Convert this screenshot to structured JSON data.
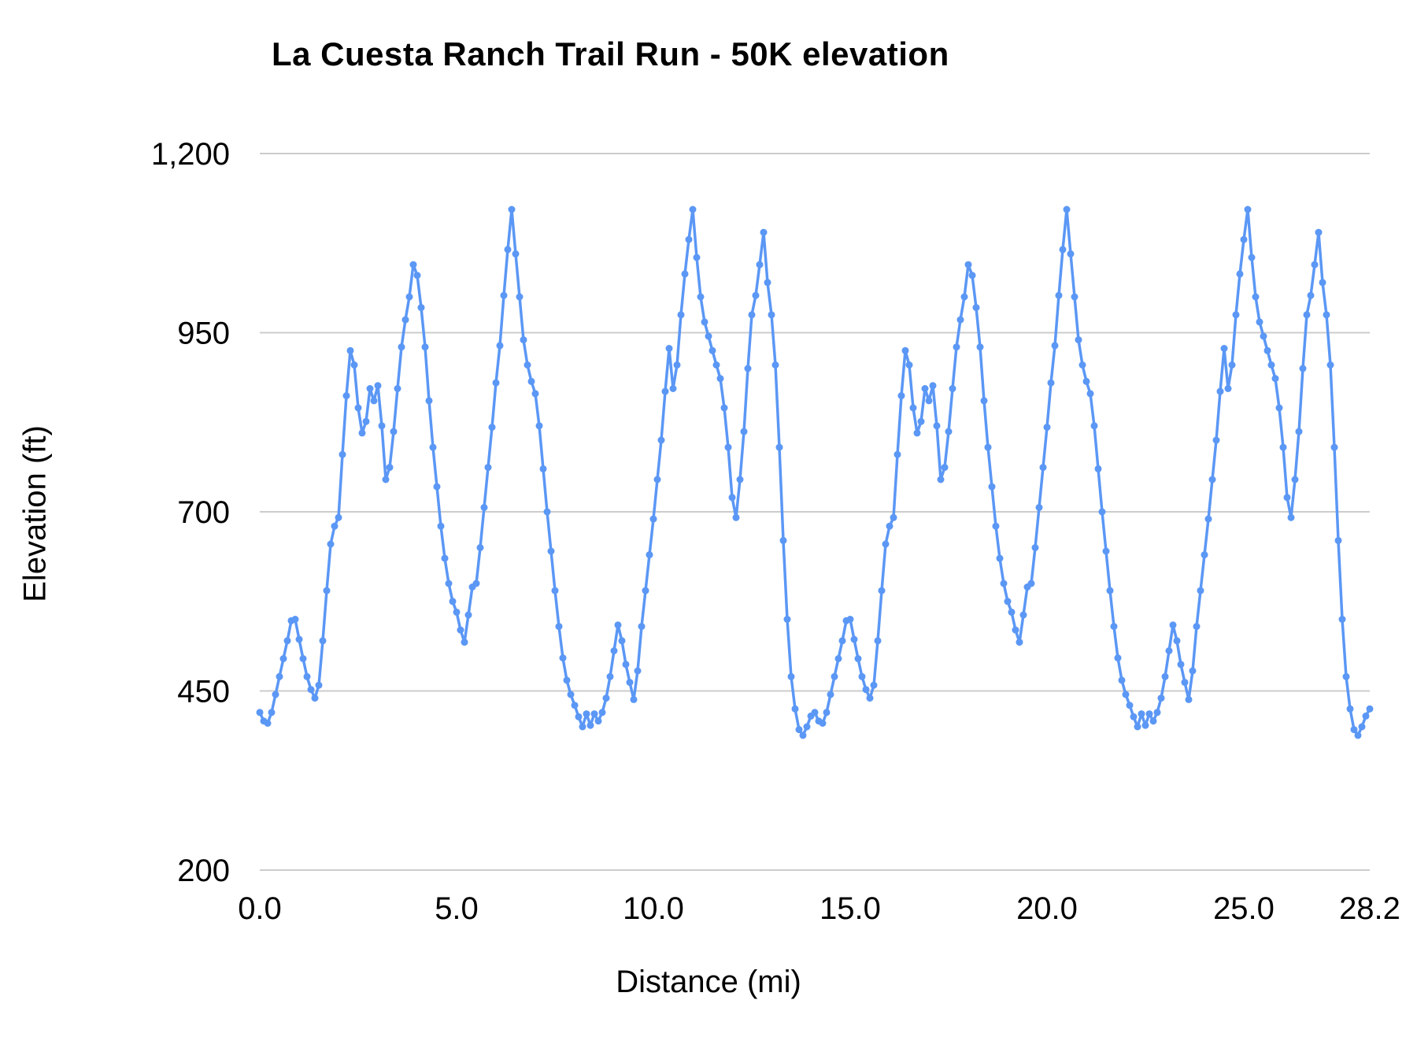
{
  "chart_data": {
    "type": "line",
    "title": "La Cuesta Ranch Trail Run - 50K elevation",
    "xlabel": "Distance (mi)",
    "ylabel": "Elevation (ft)",
    "series_name": "Elevation",
    "xlim": [
      0,
      28.2
    ],
    "ylim": [
      200,
      1200
    ],
    "x_ticks": [
      0,
      5,
      10,
      15,
      20,
      25,
      28.2
    ],
    "x_tick_labels": [
      "0.0",
      "5.0",
      "10.0",
      "15.0",
      "20.0",
      "25.0",
      "28.2"
    ],
    "y_ticks": [
      200,
      450,
      700,
      950,
      1200
    ],
    "y_tick_labels": [
      "200",
      "450",
      "700",
      "950",
      "1,200"
    ],
    "grid": "horizontal",
    "legend": "none",
    "line_color": "#5b97f5",
    "gridline_color": "#cccccc",
    "text_color": "#000000",
    "marker": "circle",
    "x_start": 0.0,
    "x_step": 0.1,
    "elevations": [
      420,
      408,
      405,
      420,
      445,
      470,
      495,
      520,
      548,
      550,
      522,
      495,
      470,
      452,
      440,
      458,
      520,
      590,
      655,
      680,
      692,
      780,
      862,
      925,
      905,
      845,
      810,
      826,
      872,
      855,
      876,
      820,
      745,
      762,
      812,
      872,
      930,
      968,
      1000,
      1045,
      1030,
      985,
      930,
      855,
      790,
      735,
      680,
      635,
      600,
      575,
      560,
      535,
      518,
      556,
      595,
      600,
      650,
      706,
      762,
      818,
      880,
      932,
      1002,
      1066,
      1122,
      1060,
      1000,
      940,
      905,
      882,
      865,
      820,
      760,
      700,
      645,
      590,
      540,
      496,
      465,
      445,
      430,
      414,
      400,
      418,
      402,
      418,
      408,
      420,
      440,
      470,
      506,
      542,
      520,
      487,
      462,
      438,
      478,
      540,
      590,
      640,
      690,
      745,
      800,
      868,
      928,
      872,
      905,
      975,
      1032,
      1080,
      1122,
      1055,
      1000,
      965,
      945,
      925,
      905,
      886,
      845,
      790,
      720,
      692,
      745,
      812,
      900,
      975,
      1002,
      1045,
      1090,
      1020,
      975,
      905,
      790,
      660,
      550,
      470,
      425,
      396,
      388,
      400,
      415,
      420,
      408,
      405,
      420,
      445,
      470,
      495,
      520,
      548,
      550,
      522,
      495,
      470,
      452,
      440,
      458,
      520,
      590,
      655,
      680,
      692,
      780,
      862,
      925,
      905,
      845,
      810,
      826,
      872,
      855,
      876,
      820,
      745,
      762,
      812,
      872,
      930,
      968,
      1000,
      1045,
      1030,
      985,
      930,
      855,
      790,
      735,
      680,
      635,
      600,
      575,
      560,
      535,
      518,
      556,
      595,
      600,
      650,
      706,
      762,
      818,
      880,
      932,
      1002,
      1066,
      1122,
      1060,
      1000,
      940,
      905,
      882,
      865,
      820,
      760,
      700,
      645,
      590,
      540,
      496,
      465,
      445,
      430,
      414,
      400,
      418,
      402,
      418,
      408,
      420,
      440,
      470,
      506,
      542,
      520,
      487,
      462,
      438,
      478,
      540,
      590,
      640,
      690,
      745,
      800,
      868,
      928,
      872,
      905,
      975,
      1032,
      1080,
      1122,
      1055,
      1000,
      965,
      945,
      925,
      905,
      886,
      845,
      790,
      720,
      692,
      745,
      812,
      900,
      975,
      1002,
      1045,
      1090,
      1020,
      975,
      905,
      790,
      660,
      550,
      470,
      425,
      396,
      388,
      400,
      415,
      425
    ]
  }
}
